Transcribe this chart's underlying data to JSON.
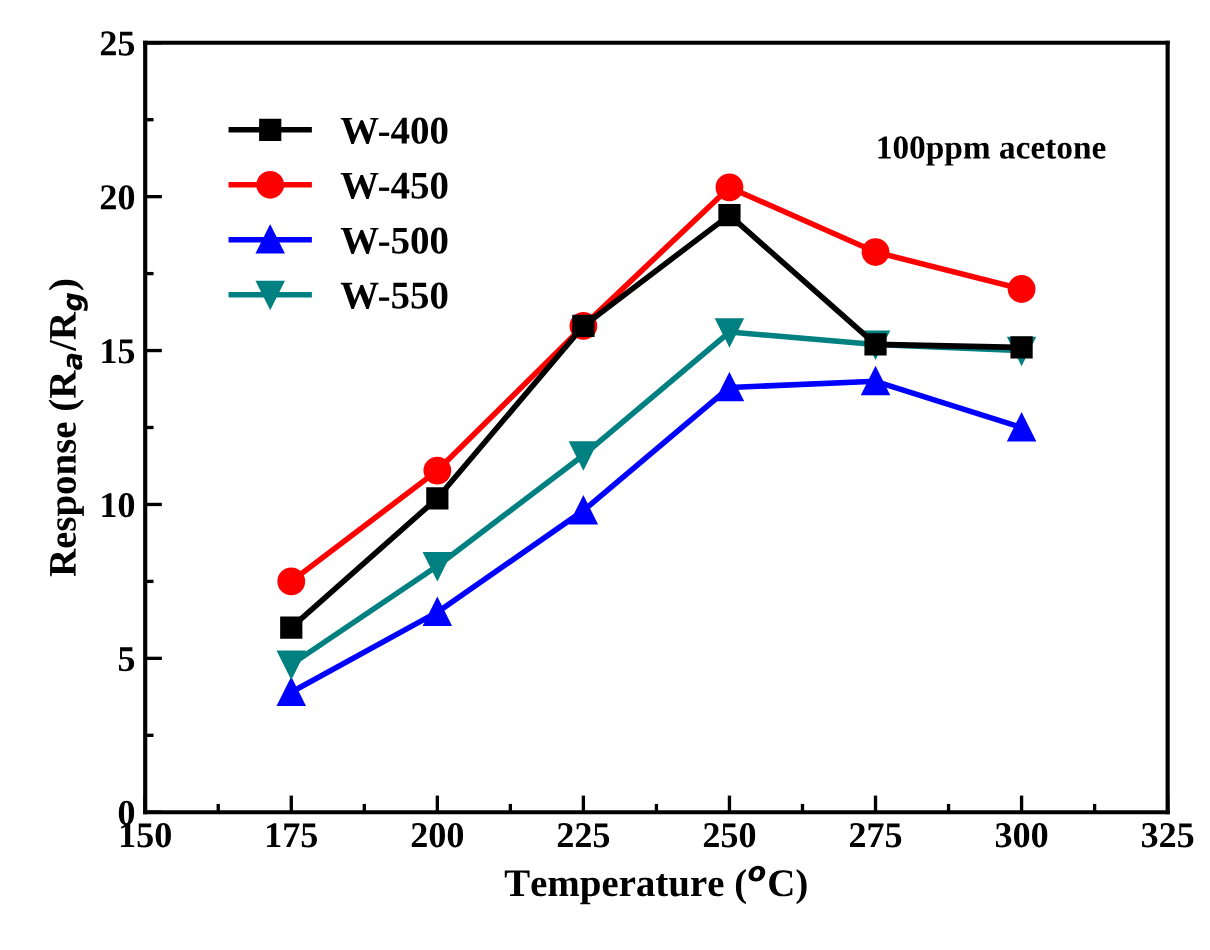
{
  "chart_data": {
    "type": "line",
    "xlabel": "Temperature ($^{o}$C)",
    "ylabel": "Response (R$_{a}$/R$_{g}$)",
    "annotations": [
      "100ppm acetone"
    ],
    "x": [
      175,
      200,
      225,
      250,
      275,
      300
    ],
    "series": [
      {
        "name": "W-400",
        "color": "#000000",
        "marker": "square",
        "values": [
          6.0,
          10.2,
          15.8,
          19.4,
          15.2,
          15.1
        ]
      },
      {
        "name": "W-450",
        "color": "#ff0000",
        "marker": "circle",
        "values": [
          7.5,
          11.1,
          15.8,
          20.3,
          18.2,
          17.0
        ]
      },
      {
        "name": "W-500",
        "color": "#0000ff",
        "marker": "triangle",
        "values": [
          3.9,
          6.5,
          9.8,
          13.8,
          14.0,
          12.5
        ]
      },
      {
        "name": "W-550",
        "color": "#008080",
        "marker": "triangle_down",
        "values": [
          4.8,
          8.0,
          11.6,
          15.6,
          15.2,
          15.0
        ]
      }
    ],
    "xlim": [
      150,
      325
    ],
    "xticks": [
      150,
      175,
      200,
      225,
      250,
      275,
      300,
      325
    ],
    "ylim": [
      0,
      25
    ],
    "yticks": [
      0,
      5,
      10,
      15,
      20,
      25
    ],
    "grid": false,
    "legend": "top left",
    "line_style": "solid"
  }
}
